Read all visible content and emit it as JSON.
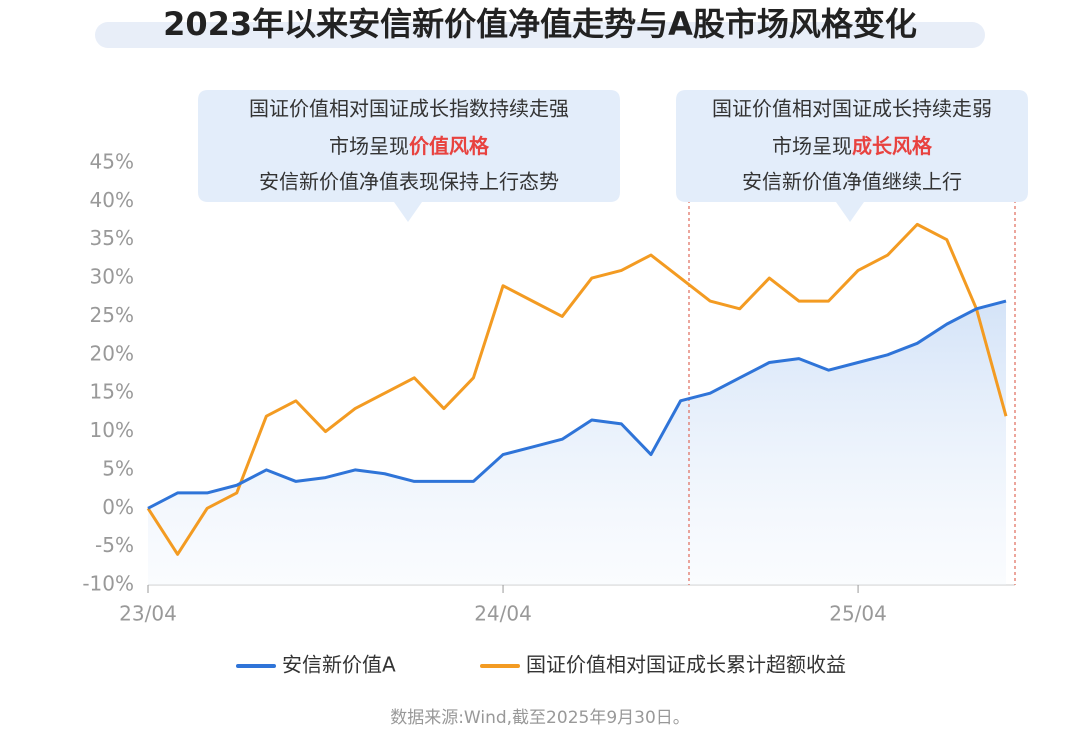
{
  "chart_data": {
    "type": "line",
    "title": "2023年以来安信新价值净值走势与A股市场风格变化",
    "categories": [
      "23/04",
      null,
      null,
      null,
      null,
      null,
      null,
      null,
      null,
      null,
      null,
      null,
      "24/04",
      null,
      null,
      null,
      null,
      null,
      null,
      null,
      null,
      null,
      null,
      null,
      "25/04",
      null,
      null,
      null,
      null,
      null
    ],
    "series": [
      {
        "name": "安信新价值A",
        "color": "#2f74d8",
        "values": [
          0,
          2,
          2,
          3,
          5,
          3.5,
          4,
          5,
          4.5,
          3.5,
          3.5,
          3.5,
          7,
          8,
          9,
          11.5,
          11,
          7,
          14,
          15,
          17,
          19,
          19.5,
          18,
          19,
          20,
          21.5,
          24,
          26,
          27
        ]
      },
      {
        "name": "国证价值相对国证成长累计超额收益",
        "color": "#f39b22",
        "values": [
          0,
          -6,
          0,
          2,
          12,
          14,
          10,
          13,
          15,
          17,
          13,
          17,
          29,
          27,
          25,
          30,
          31,
          33,
          30,
          27,
          26,
          30,
          27,
          27,
          31,
          33,
          37,
          35,
          26,
          12
        ]
      }
    ],
    "ylim": [
      -10,
      45
    ],
    "yticks": [
      {
        "value": -10,
        "label": "-10%"
      },
      {
        "value": -5,
        "label": "-5%"
      },
      {
        "value": 0,
        "label": "0%"
      },
      {
        "value": 5,
        "label": "5%"
      },
      {
        "value": 10,
        "label": "10%"
      },
      {
        "value": 15,
        "label": "15%"
      },
      {
        "value": 20,
        "label": "20%"
      },
      {
        "value": 25,
        "label": "25%"
      },
      {
        "value": 30,
        "label": "30%"
      },
      {
        "value": 35,
        "label": "35%"
      },
      {
        "value": 40,
        "label": "40%"
      },
      {
        "value": 45,
        "label": "45%"
      }
    ],
    "annotations": [
      {
        "lines": [
          "国证价值相对国证成长指数持续走强",
          "市场呈现",
          "安信新价值净值表现保持上行态势"
        ],
        "highlight": "价值风格"
      },
      {
        "lines": [
          "国证价值相对国证成长持续走弱",
          "市场呈现",
          "安信新价值净值继续上行"
        ],
        "highlight": "成长风格"
      }
    ],
    "source": "数据来源:Wind,截至2025年9月30日。"
  }
}
